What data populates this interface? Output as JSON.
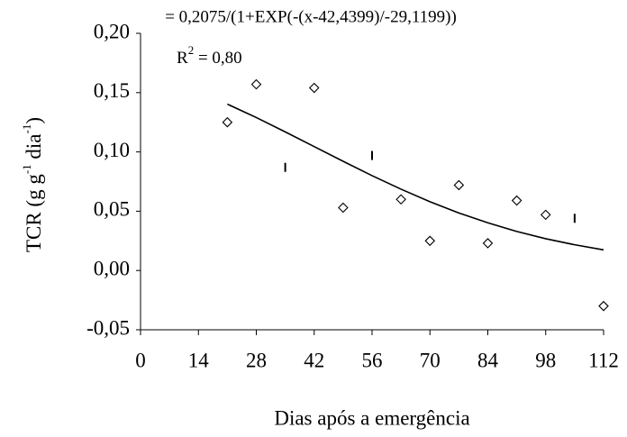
{
  "chart_data": {
    "type": "scatter",
    "annotations": [
      "= 0,2075/(1+EXP(-(x-42,4399)/-29,1199))",
      "R",
      "2",
      " = 0,80"
    ],
    "y_label": [
      "TCR (g g",
      "-1",
      " dia",
      "-1",
      ")"
    ],
    "x_label": "Dias após a emergência",
    "xlim": [
      0,
      112
    ],
    "xticks": [
      0,
      14,
      28,
      42,
      56,
      70,
      84,
      98,
      112
    ],
    "ylim": [
      -0.05,
      0.2
    ],
    "yticks": [
      {
        "value": -0.05,
        "label": "-0,05"
      },
      {
        "value": 0,
        "label": "0,00"
      },
      {
        "value": 0.05,
        "label": "0,05"
      },
      {
        "value": 0.1,
        "label": "0,10"
      },
      {
        "value": 0.15,
        "label": "0,15"
      },
      {
        "value": 0.2,
        "label": "0,20"
      }
    ],
    "grid": false,
    "series": [
      {
        "color": "#000000",
        "marker": "diamond",
        "x": [
          21,
          28,
          42,
          49,
          63,
          70,
          77,
          84,
          91,
          98,
          112
        ],
        "values": [
          0.125,
          0.157,
          0.154,
          0.053,
          0.06,
          0.025,
          0.072,
          0.023,
          0.059,
          0.047,
          -0.03
        ]
      },
      {
        "color": "#000000",
        "marker": "dash",
        "x": [
          35,
          56,
          105
        ],
        "values": [
          0.087,
          0.097,
          0.044
        ]
      },
      {
        "color": "#000000",
        "marker": "line",
        "x": [
          21,
          28,
          35,
          42,
          49,
          56,
          63,
          70,
          77,
          84,
          91,
          98,
          105,
          112
        ],
        "values": [
          0.1403,
          0.129,
          0.1169,
          0.1045,
          0.0921,
          0.08,
          0.0686,
          0.058,
          0.0485,
          0.0402,
          0.0329,
          0.0268,
          0.0217,
          0.0174
        ]
      }
    ]
  }
}
